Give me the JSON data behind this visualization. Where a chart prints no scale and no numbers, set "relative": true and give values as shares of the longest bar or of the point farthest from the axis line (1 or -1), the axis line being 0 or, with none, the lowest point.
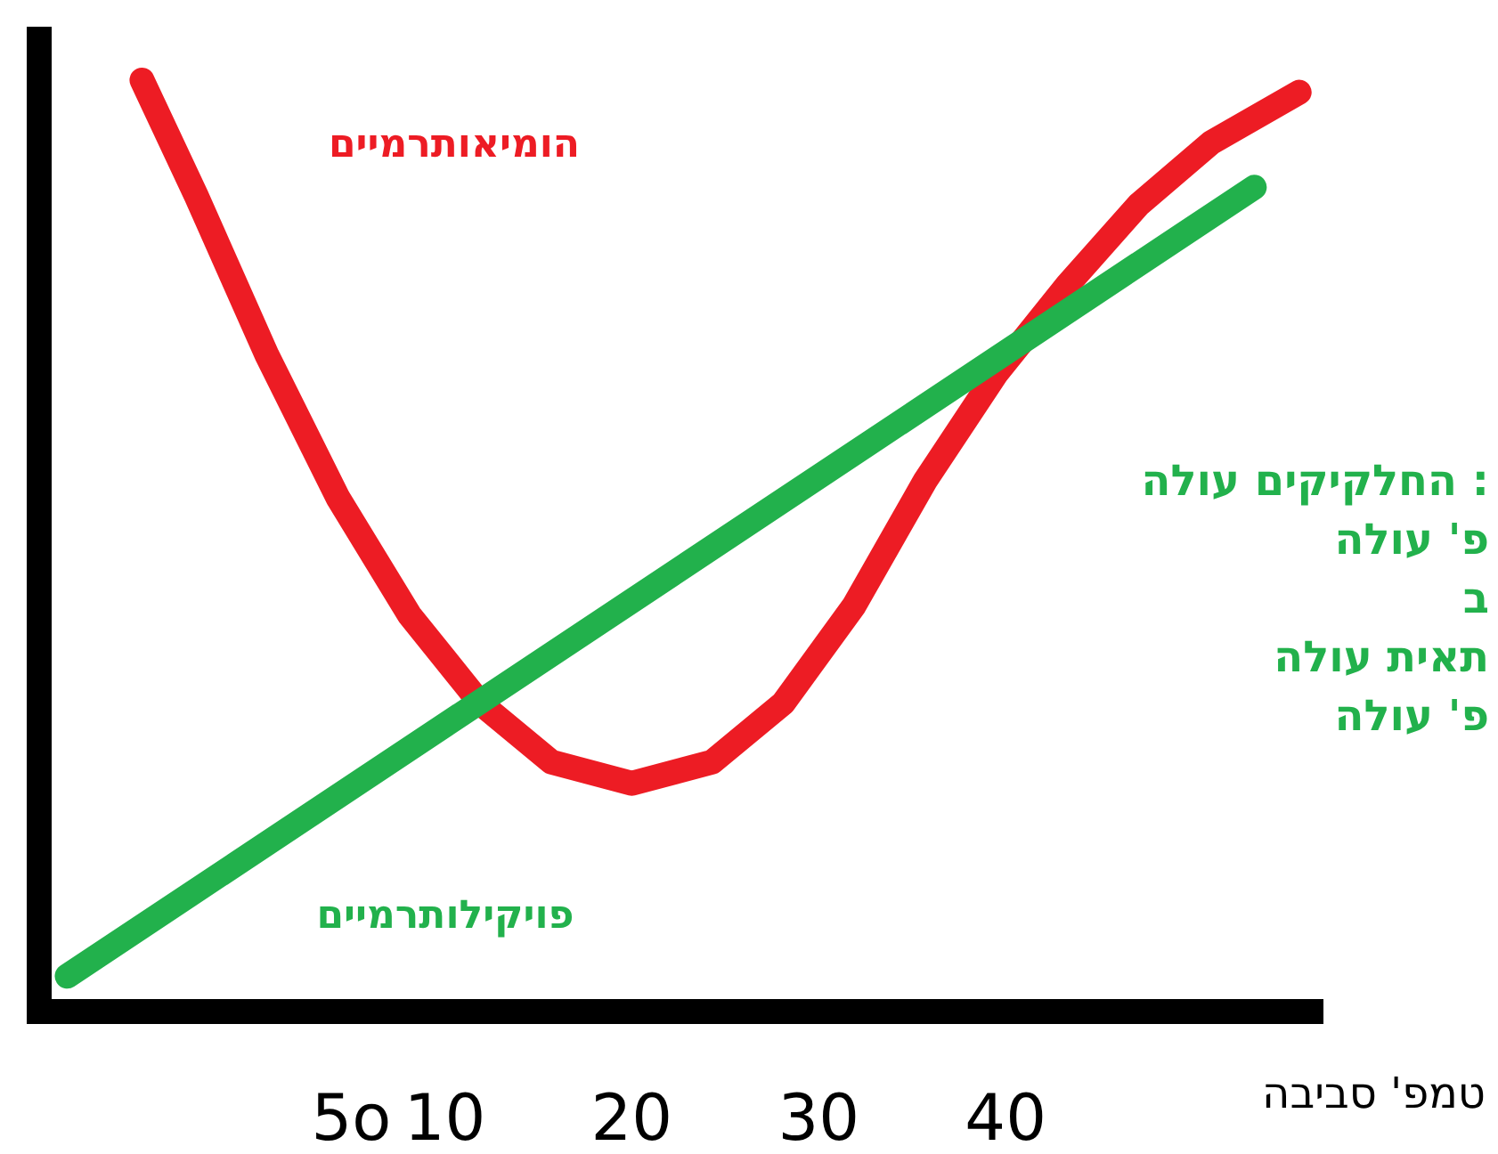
{
  "chart_data": {
    "type": "line",
    "relative": true,
    "xlabel": "טמפ' סביבה",
    "xlim": [
      -11.7,
      57
    ],
    "xticks": [
      {
        "value": 5,
        "label": "5o"
      },
      10,
      20,
      30,
      40
    ],
    "grid": false,
    "legend": false,
    "marker": "none",
    "line_style": "solid",
    "series": [
      {
        "name": "הומיאותרמיים",
        "color": "#ed1c24",
        "x": [
          -6.2,
          -3.3,
          0.5,
          4.3,
          8.1,
          11.9,
          15.7,
          20,
          24.3,
          28.1,
          31.9,
          35.7,
          39.5,
          43.3,
          47.1,
          51,
          55.7
        ],
        "values": [
          1,
          0.876,
          0.704,
          0.551,
          0.426,
          0.331,
          0.268,
          0.245,
          0.268,
          0.331,
          0.436,
          0.57,
          0.685,
          0.78,
          0.866,
          0.933,
          0.987
        ]
      },
      {
        "name": "פויקילותרמיים",
        "color": "#22b14c",
        "x": [
          -10.2,
          53.3
        ],
        "values": [
          0.038,
          0.885
        ]
      }
    ],
    "annotations": [
      ": החלקיקים עולה",
      "פ' עולה",
      "ב",
      "תאית עולה",
      "פ' עולה"
    ]
  }
}
